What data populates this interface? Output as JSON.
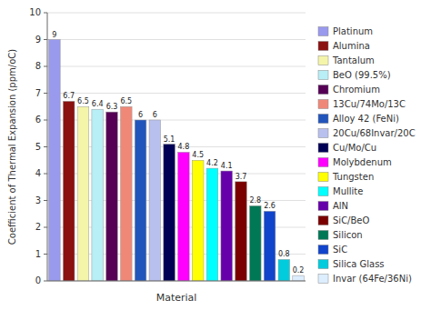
{
  "chart_data": {
    "type": "bar",
    "categories": [
      "Platinum",
      "Alumina",
      "Tantalum",
      "BeO (99.5%)",
      "Chromium",
      "13Cu/74Mo/13C",
      "Alloy 42 (FeNi)",
      "20Cu/68Invar/20C",
      "Cu/Mo/Cu",
      "Molybdenum",
      "Tungsten",
      "Mullite",
      "AlN",
      "SiC/BeO",
      "Silicon",
      "SiC",
      "Silica Glass",
      "Invar (64Fe/36Ni)"
    ],
    "values": [
      9,
      6.7,
      6.5,
      6.4,
      6.3,
      6.5,
      6,
      6,
      5.1,
      4.8,
      4.5,
      4.2,
      4.1,
      3.7,
      2.8,
      2.6,
      0.8,
      0.2
    ],
    "colors": [
      "#9999ee",
      "#8B1010",
      "#f5f5aa",
      "#b8eef5",
      "#550055",
      "#f08878",
      "#2255bb",
      "#b8c0ee",
      "#000055",
      "#ff00ff",
      "#ffff00",
      "#00ffff",
      "#6600aa",
      "#7a0000",
      "#007755",
      "#1144cc",
      "#00ccdd",
      "#ddeeff"
    ],
    "xlabel": "Material",
    "ylabel": "Coefficient of Thermal Expansion (ppm/oC)",
    "ylim": [
      0,
      10
    ],
    "yticks": [
      0,
      1,
      2,
      3,
      4,
      5,
      6,
      7,
      8,
      9,
      10
    ],
    "grid": true,
    "data_labels": true,
    "tick_labels": "y",
    "legend": "right"
  }
}
